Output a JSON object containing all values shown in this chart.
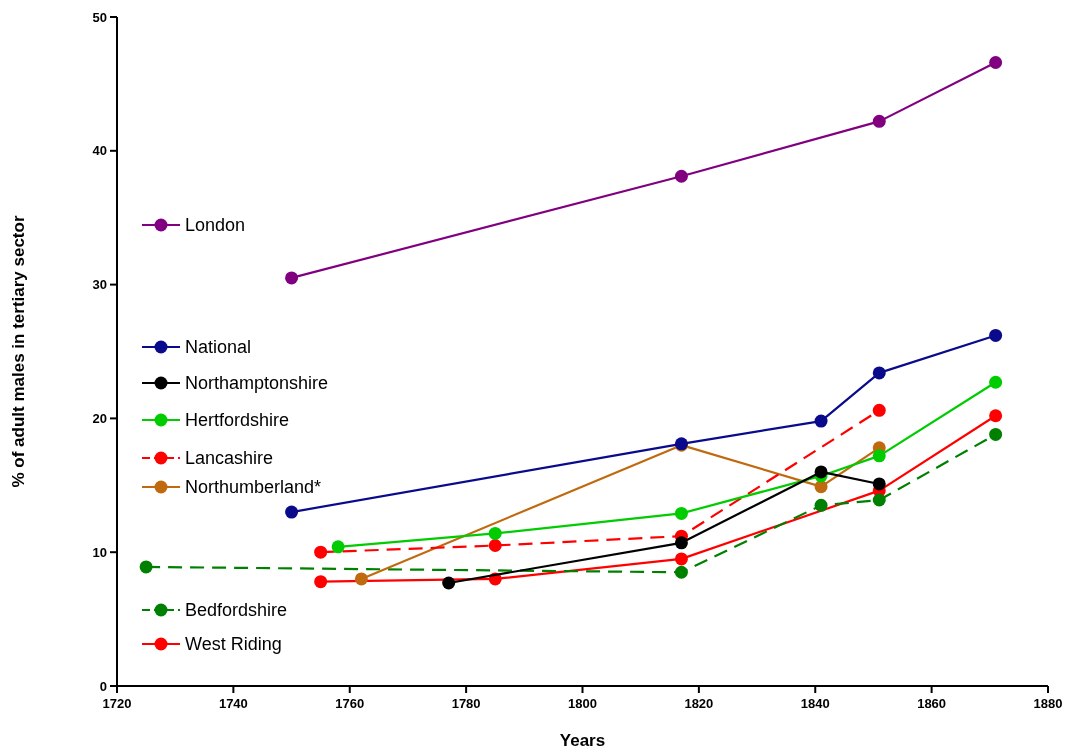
{
  "chart_data": {
    "type": "line",
    "xlabel": "Years",
    "ylabel": "% of adult males in tertiary sector",
    "xlim": [
      1720,
      1880
    ],
    "xticks": [
      1720,
      1740,
      1760,
      1780,
      1800,
      1820,
      1840,
      1860,
      1880
    ],
    "ylim": [
      0,
      50
    ],
    "yticks": [
      0,
      10,
      20,
      30,
      40,
      50
    ],
    "grid": false,
    "legend": "left",
    "marker": "circle",
    "line_style": "solid",
    "series": [
      {
        "name": "London",
        "color": "#800080",
        "x": [
          1750,
          1817,
          1851,
          1871
        ],
        "values": [
          30.5,
          38.1,
          42.2,
          46.6
        ]
      },
      {
        "name": "National",
        "color": "#0a0a8c",
        "x": [
          1750,
          1817,
          1841,
          1851,
          1871
        ],
        "values": [
          13.0,
          18.1,
          19.8,
          23.4,
          26.2
        ]
      },
      {
        "name": "Northamptonshire",
        "color": "#000000",
        "x": [
          1777,
          1817,
          1841,
          1851
        ],
        "values": [
          7.7,
          10.7,
          16.0,
          15.1
        ]
      },
      {
        "name": "Hertfordshire",
        "color": "#00cc00",
        "x": [
          1758,
          1785,
          1817,
          1841,
          1851,
          1871
        ],
        "values": [
          10.4,
          11.4,
          12.9,
          15.7,
          17.2,
          22.7
        ]
      },
      {
        "name": "Lancashire",
        "color": "#ff0000",
        "line_style": "dashed",
        "x": [
          1755,
          1785,
          1817,
          1851
        ],
        "values": [
          10.0,
          10.5,
          11.2,
          20.6
        ]
      },
      {
        "name": "Northumberland*",
        "color": "#c06a10",
        "x": [
          1762,
          1817,
          1841,
          1851
        ],
        "values": [
          8.0,
          18.0,
          14.9,
          17.8
        ]
      },
      {
        "name": "Bedfordshire",
        "color": "#008000",
        "line_style": "dashed",
        "x": [
          1725,
          1817,
          1841,
          1851,
          1871
        ],
        "values": [
          8.9,
          8.5,
          13.5,
          13.9,
          18.8
        ]
      },
      {
        "name": "West Riding",
        "color": "#ff0000",
        "x": [
          1755,
          1785,
          1817,
          1851,
          1871
        ],
        "values": [
          7.8,
          8.0,
          9.5,
          14.6,
          20.2
        ]
      }
    ]
  }
}
